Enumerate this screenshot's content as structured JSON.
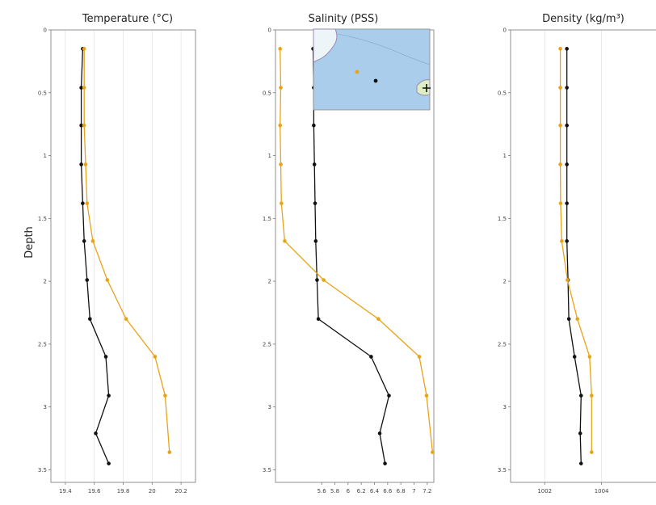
{
  "figure": {
    "ylabel": "Depth"
  },
  "colors": {
    "series_a": "#111111",
    "series_b": "#e8a317",
    "frame": "#777777",
    "grid": "#dddddd",
    "map_water": "#a9cdea",
    "map_land": "#eef5f8",
    "map_island": "#ddeec4"
  },
  "chart_data": [
    {
      "type": "line",
      "title": "Temperature (°C)",
      "orientation": "vertical-profile",
      "xlim": [
        19.3,
        20.3
      ],
      "ylim": [
        0,
        3.6
      ],
      "y_inverted": true,
      "x_ticks": [
        19.4,
        19.6,
        19.8,
        20,
        20.2
      ],
      "x_tick_labels": [
        "19.4",
        "19.6",
        "19.8",
        "20",
        "20.2"
      ],
      "y_ticks": [
        0,
        0.5,
        1,
        1.5,
        2,
        2.5,
        3,
        3.5
      ],
      "y_tick_labels": [
        "0",
        "0.5",
        "1",
        "1.5",
        "2",
        "2.5",
        "3",
        "3.5"
      ],
      "grid": true,
      "series": [
        {
          "color": "#111111",
          "values": [
            [
              19.52,
              0.15
            ],
            [
              19.51,
              0.46
            ],
            [
              19.51,
              0.76
            ],
            [
              19.51,
              1.07
            ],
            [
              19.52,
              1.38
            ],
            [
              19.53,
              1.68
            ],
            [
              19.55,
              1.99
            ],
            [
              19.57,
              2.3
            ],
            [
              19.68,
              2.6
            ],
            [
              19.7,
              2.91
            ],
            [
              19.61,
              3.21
            ],
            [
              19.7,
              3.45
            ]
          ]
        },
        {
          "color": "#e8a317",
          "values": [
            [
              19.53,
              0.15
            ],
            [
              19.53,
              0.46
            ],
            [
              19.53,
              0.76
            ],
            [
              19.54,
              1.07
            ],
            [
              19.55,
              1.38
            ],
            [
              19.59,
              1.68
            ],
            [
              19.69,
              1.99
            ],
            [
              19.82,
              2.3
            ],
            [
              20.02,
              2.6
            ],
            [
              20.09,
              2.91
            ],
            [
              20.12,
              3.36
            ]
          ]
        }
      ]
    },
    {
      "type": "line",
      "title": "Salinity (PSS)",
      "orientation": "vertical-profile",
      "xlim": [
        4.9,
        7.3
      ],
      "ylim": [
        0,
        3.6
      ],
      "y_inverted": true,
      "x_ticks": [
        5.6,
        5.8,
        6,
        6.2,
        6.4,
        6.6,
        6.8,
        7,
        7.2
      ],
      "x_tick_labels": [
        "5.6",
        "5.8",
        "6",
        "6.2",
        "6.4",
        "6.6",
        "6.8",
        "7",
        "7.2"
      ],
      "y_ticks": [
        0,
        0.5,
        1,
        1.5,
        2,
        2.5,
        3,
        3.5
      ],
      "y_tick_labels": [
        "0",
        "0.5",
        "1",
        "1.5",
        "2",
        "2.5",
        "3",
        "3.5"
      ],
      "grid": false,
      "series": [
        {
          "color": "#111111",
          "values": [
            [
              5.47,
              0.15
            ],
            [
              5.48,
              0.46
            ],
            [
              5.48,
              0.76
            ],
            [
              5.49,
              1.07
            ],
            [
              5.5,
              1.38
            ],
            [
              5.51,
              1.68
            ],
            [
              5.53,
              1.99
            ],
            [
              5.55,
              2.3
            ],
            [
              6.35,
              2.6
            ],
            [
              6.62,
              2.91
            ],
            [
              6.48,
              3.21
            ],
            [
              6.56,
              3.45
            ]
          ]
        },
        {
          "color": "#e8a317",
          "values": [
            [
              4.97,
              0.15
            ],
            [
              4.98,
              0.46
            ],
            [
              4.97,
              0.76
            ],
            [
              4.98,
              1.07
            ],
            [
              4.99,
              1.38
            ],
            [
              5.04,
              1.68
            ],
            [
              5.63,
              1.99
            ],
            [
              6.46,
              2.3
            ],
            [
              7.08,
              2.6
            ],
            [
              7.19,
              2.91
            ],
            [
              7.28,
              3.36
            ]
          ]
        }
      ],
      "inset": "map"
    },
    {
      "type": "line",
      "title": "Density (kg/m³)",
      "orientation": "vertical-profile",
      "xlim": [
        1000.8,
        1006.0
      ],
      "ylim": [
        0,
        3.6
      ],
      "y_inverted": true,
      "x_ticks": [
        1002,
        1004
      ],
      "x_tick_labels": [
        "1002",
        "1004"
      ],
      "y_ticks": [
        0,
        0.5,
        1,
        1.5,
        2,
        2.5,
        3,
        3.5
      ],
      "y_tick_labels": [
        "0",
        "0.5",
        "1",
        "1.5",
        "2",
        "2.5",
        "3",
        "3.5"
      ],
      "grid": true,
      "series": [
        {
          "color": "#111111",
          "values": [
            [
              1002.78,
              0.15
            ],
            [
              1002.78,
              0.46
            ],
            [
              1002.78,
              0.76
            ],
            [
              1002.78,
              1.07
            ],
            [
              1002.78,
              1.38
            ],
            [
              1002.78,
              1.68
            ],
            [
              1002.82,
              1.99
            ],
            [
              1002.85,
              2.3
            ],
            [
              1003.05,
              2.6
            ],
            [
              1003.28,
              2.91
            ],
            [
              1003.25,
              3.21
            ],
            [
              1003.28,
              3.45
            ]
          ]
        },
        {
          "color": "#e8a317",
          "values": [
            [
              1002.55,
              0.15
            ],
            [
              1002.55,
              0.46
            ],
            [
              1002.55,
              0.76
            ],
            [
              1002.55,
              1.07
            ],
            [
              1002.56,
              1.38
            ],
            [
              1002.6,
              1.68
            ],
            [
              1002.8,
              1.99
            ],
            [
              1003.15,
              2.3
            ],
            [
              1003.58,
              2.6
            ],
            [
              1003.65,
              2.91
            ],
            [
              1003.65,
              3.36
            ]
          ]
        }
      ]
    }
  ]
}
